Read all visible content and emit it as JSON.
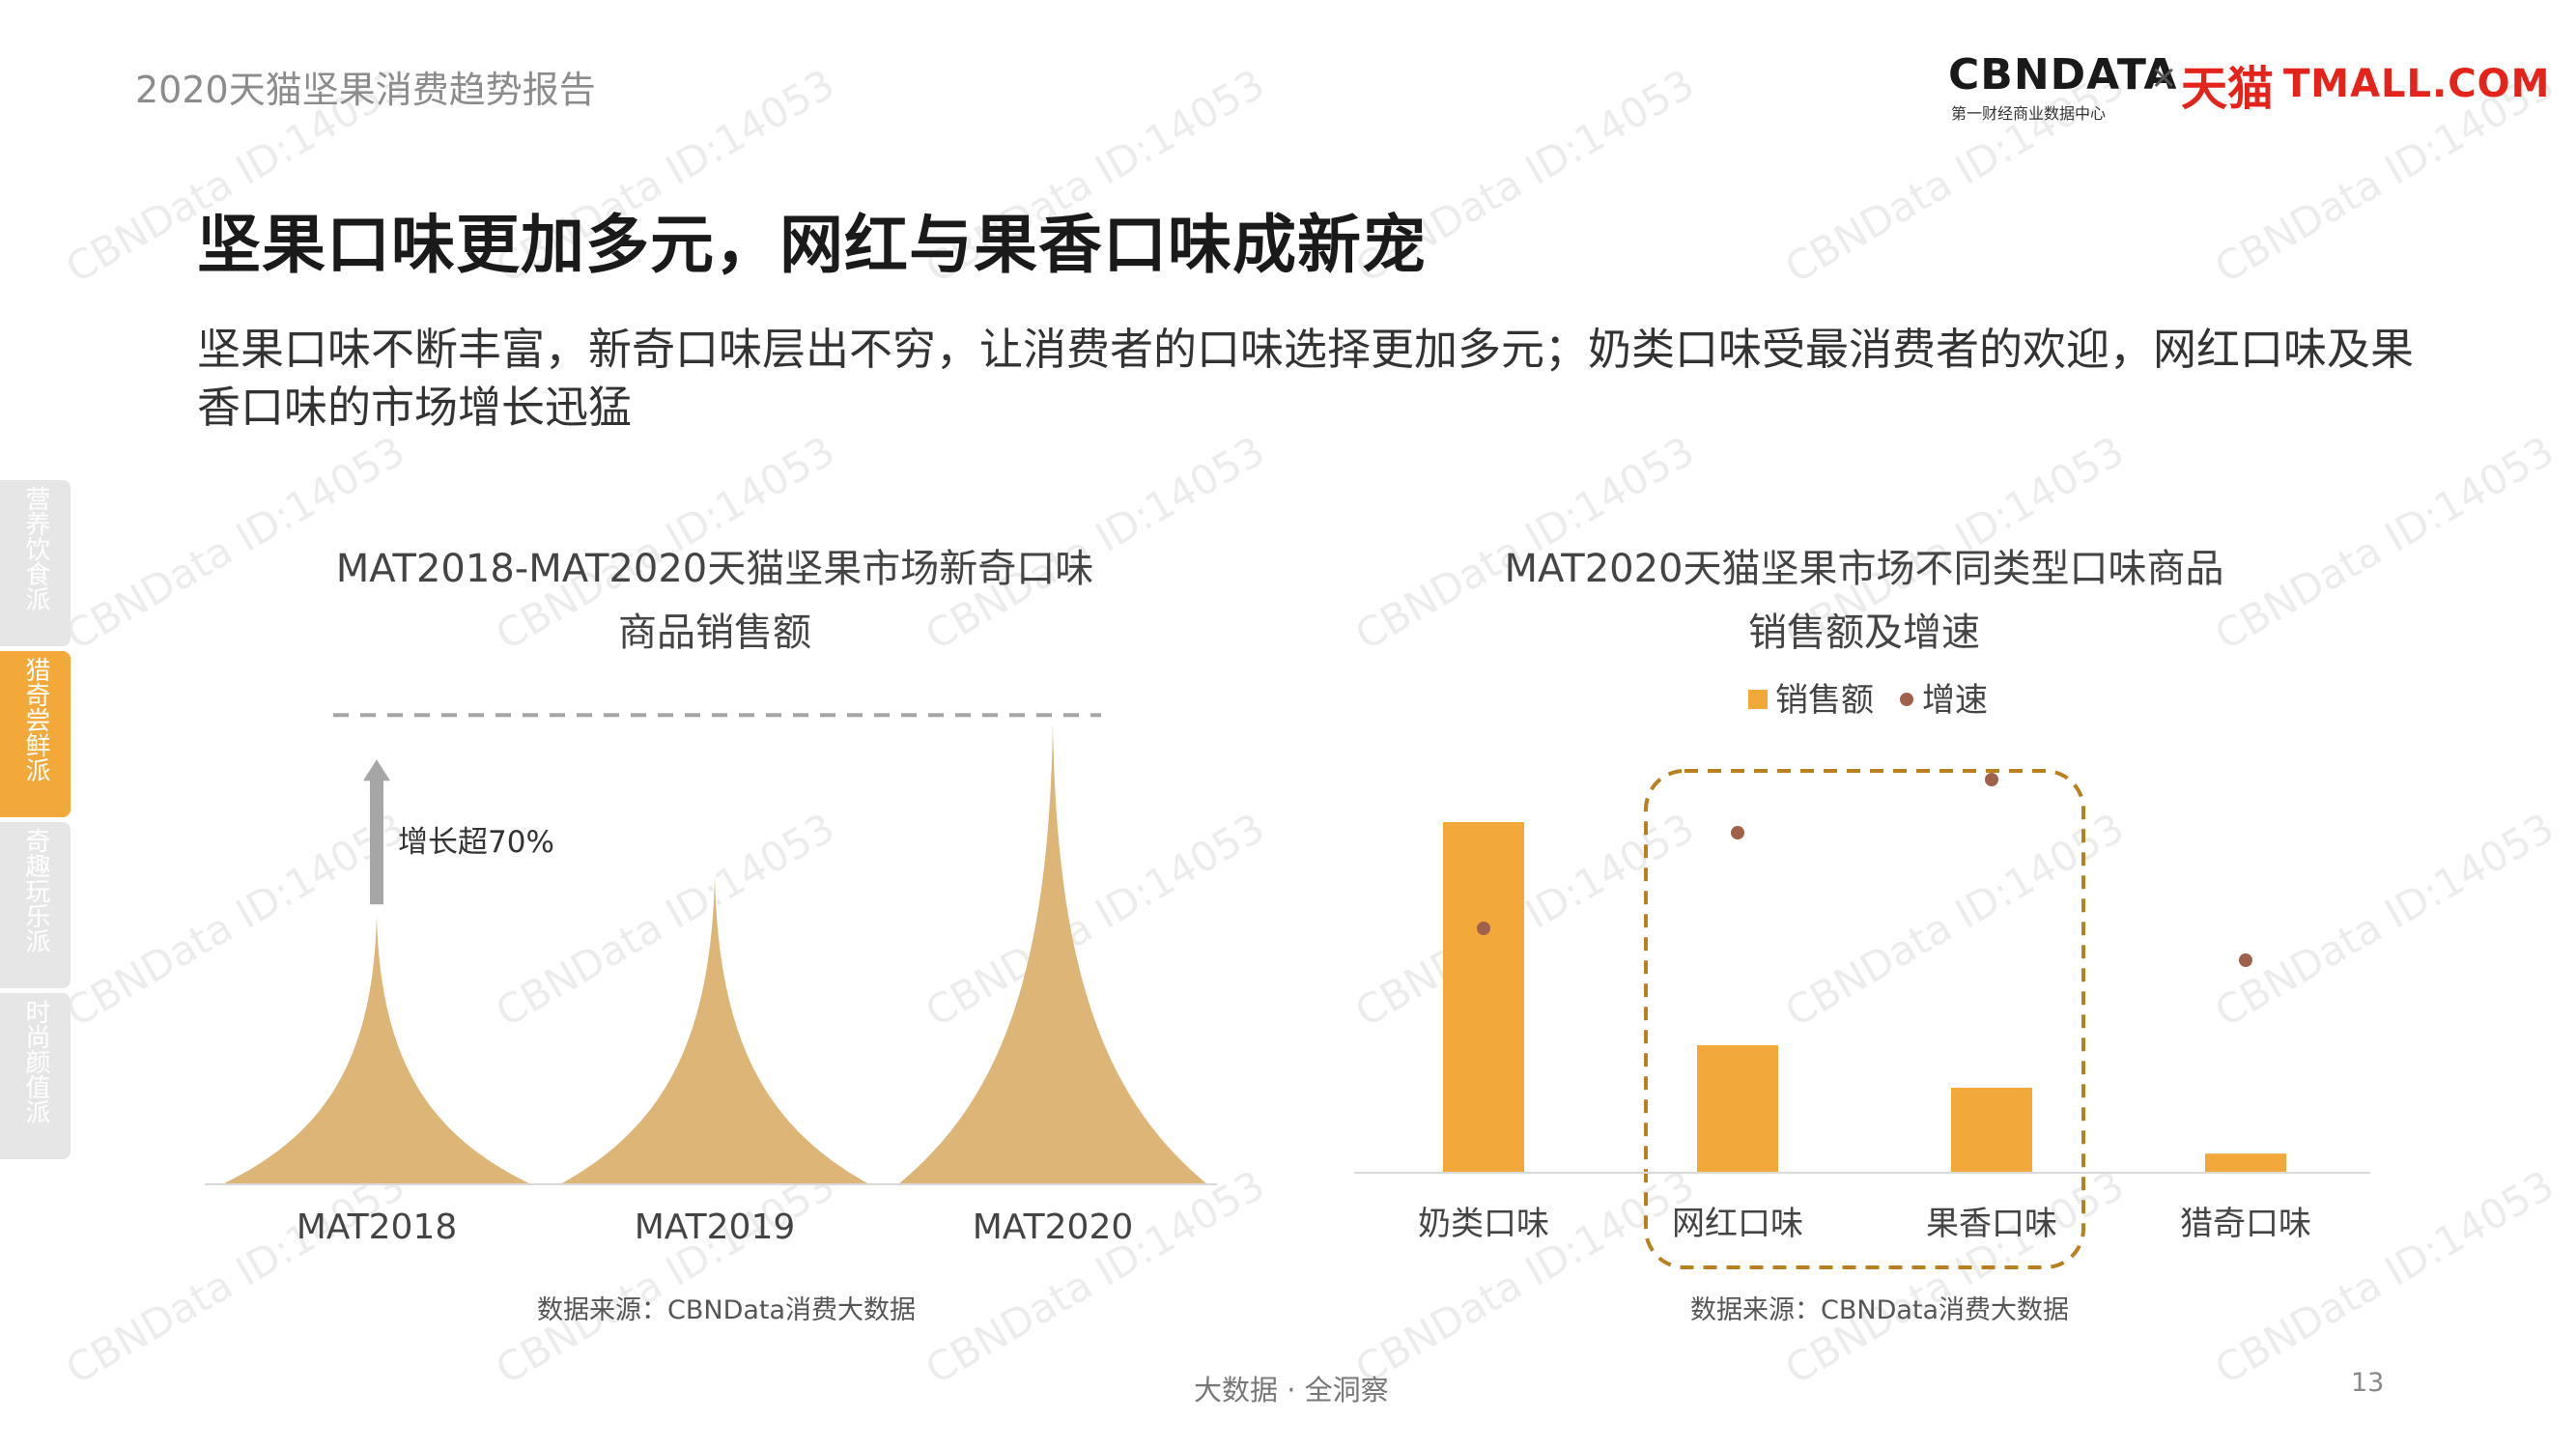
{
  "header": {
    "report_title": "2020天猫坚果消费趋势报告",
    "logo_cbn": "CBNDATA",
    "logo_cbn_sub": "第一财经商业数据中心",
    "logo_x": "×",
    "logo_tmall_cn": "天猫",
    "logo_tmall_en": "TMALL.COM"
  },
  "heading": "坚果口味更加多元，网红与果香口味成新宠",
  "subtitle": "坚果口味不断丰富，新奇口味层出不穷，让消费者的口味选择更加多元；奶类口味受最消费者的欢迎，网红口味及果香口味的市场增长迅猛",
  "side_nav": [
    {
      "label": "营养饮食派",
      "active": false
    },
    {
      "label": "猎奇尝鲜派",
      "active": true
    },
    {
      "label": "奇趣玩乐派",
      "active": false
    },
    {
      "label": "时尚颜值派",
      "active": false
    }
  ],
  "watermark": "CBNData ID:14053",
  "colors": {
    "accent": "#f3a83a",
    "peak": "#dcb577",
    "dot": "#a0614a",
    "dash": "#b8801f"
  },
  "chart_data": [
    {
      "type": "area",
      "title_line1": "MAT2018-MAT2020天猫坚果市场新奇口味",
      "title_line2": "商品销售额",
      "categories": [
        "MAT2018",
        "MAT2019",
        "MAT2020"
      ],
      "values": [
        100,
        115,
        172
      ],
      "ylim": [
        0,
        180
      ],
      "annotation": "增长超70%",
      "source": "数据来源：CBNData消费大数据"
    },
    {
      "type": "bar",
      "title_line1": "MAT2020天猫坚果市场不同类型口味商品",
      "title_line2": "销售额及增速",
      "categories": [
        "奶类口味",
        "网红口味",
        "果香口味",
        "猎奇口味"
      ],
      "legend": [
        {
          "name": "销售额",
          "marker": "bar"
        },
        {
          "name": "增速",
          "marker": "dot"
        }
      ],
      "series": [
        {
          "name": "销售额",
          "values": [
            330,
            120,
            80,
            18
          ]
        },
        {
          "name": "增速",
          "values": [
            230,
            320,
            370,
            200
          ]
        }
      ],
      "ylim": [
        0,
        400
      ],
      "highlight": [
        "网红口味",
        "果香口味"
      ],
      "source": "数据来源：CBNData消费大数据"
    }
  ],
  "footer": {
    "text": "大数据 · 全洞察",
    "page": "13"
  }
}
